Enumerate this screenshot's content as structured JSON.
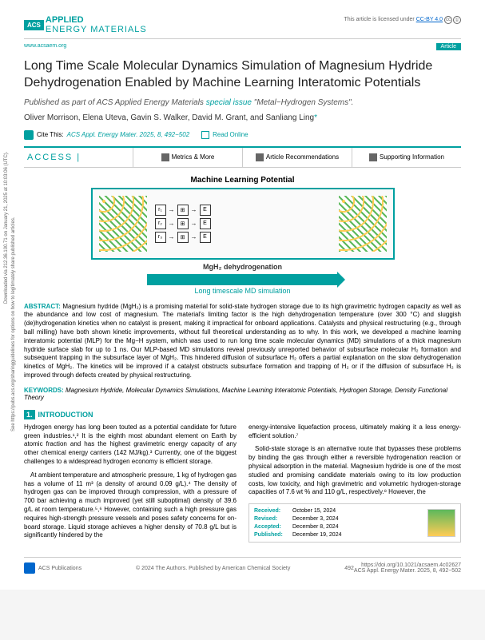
{
  "vtext1": "Downloaded via 212.36.100.71 on January 21, 2025 at 10:03:06 (UTC).",
  "vtext2": "See https://pubs.acs.org/sharingguidelines for options on how to legitimately share published articles.",
  "journal": {
    "acs": "ACS",
    "line1": "APPLIED",
    "line2": "ENERGY MATERIALS"
  },
  "license": {
    "text": "This article is licensed under ",
    "link": "CC-BY 4.0"
  },
  "meta": {
    "url": "www.acsaem.org",
    "badge": "Article"
  },
  "title": "Long Time Scale Molecular Dynamics Simulation of Magnesium Hydride Dehydrogenation Enabled by Machine Learning Interatomic Potentials",
  "subtitle_pre": "Published as part of ACS Applied Energy Materials ",
  "subtitle_special": "special issue",
  "subtitle_post": " \"Metal−Hydrogen Systems\".",
  "authors": "Oliver Morrison, Elena Uteva, Gavin S. Walker, David M. Grant, and Sanliang Ling",
  "corr": "*",
  "cite": {
    "label": "Cite This:",
    "text": "ACS Appl. Energy Mater. 2025, 8, 492−502",
    "read": "Read Online"
  },
  "tabs": {
    "access": "ACCESS |",
    "metrics": "Metrics & More",
    "recs": "Article Recommendations",
    "si": "Supporting Information"
  },
  "figure": {
    "top": "Machine Learning Potential",
    "mid": "MgH₂ dehydrogenation",
    "bot": "Long timescale MD simulation",
    "nodes": [
      "r₁",
      "E",
      "r₂",
      "E",
      "r₃",
      "E"
    ]
  },
  "abstract_label": "ABSTRACT:",
  "abstract": "Magnesium hydride (MgH₂) is a promising material for solid-state hydrogen storage due to its high gravimetric hydrogen capacity as well as the abundance and low cost of magnesium. The material's limiting factor is the high dehydrogenation temperature (over 300 °C) and sluggish (de)hydrogenation kinetics when no catalyst is present, making it impractical for onboard applications. Catalysts and physical restructuring (e.g., through ball milling) have both shown kinetic improvements, without full theoretical understanding as to why. In this work, we developed a machine learning interatomic potential (MLP) for the Mg−H system, which was used to run long time scale molecular dynamics (MD) simulations of a thick magnesium hydride surface slab for up to 1 ns. Our MLP-based MD simulations reveal previously unreported behavior of subsurface molecular H₂ formation and subsequent trapping in the subsurface layer of MgH₂. This hindered diffusion of subsurface H₂ offers a partial explanation on the slow dehydrogenation kinetics of MgH₂. The kinetics will be improved if a catalyst obstructs subsurface formation and trapping of H₂ or if the diffusion of subsurface H₂ is improved through defects created by physical restructuring.",
  "kw_label": "KEYWORDS:",
  "keywords": "Magnesium Hydride, Molecular Dynamics Simulations, Machine Learning Interatomic Potentials, Hydrogen Storage, Density Functional Theory",
  "section1": {
    "num": "1.",
    "title": "INTRODUCTION"
  },
  "col1": {
    "p1": "Hydrogen energy has long been touted as a potential candidate for future green industries.¹,² It is the eighth most abundant element on Earth by atomic fraction and has the highest gravimetric energy capacity of any other chemical energy carriers (142 MJ/kg).³ Currently, one of the biggest challenges to a widespread hydrogen economy is efficient storage.",
    "p2": "At ambient temperature and atmospheric pressure, 1 kg of hydrogen gas has a volume of 11 m³ (a density of around 0.09 g/L).⁴ The density of hydrogen gas can be improved through compression, with a pressure of 700 bar achieving a much improved (yet still suboptimal) density of 39.6 g/L at room temperature.⁵,⁶ However, containing such a high pressure gas requires high-strength pressure vessels and poses safety concerns for on-board storage. Liquid storage achieves a higher density of 70.8 g/L but is significantly hindered by the"
  },
  "col2": {
    "p1": "energy-intensive liquefaction process, ultimately making it a less energy-efficient solution.⁷",
    "p2": "Solid-state storage is an alternative route that bypasses these problems by binding the gas through either a reversible hydrogenation reaction or physical adsorption in the material. Magnesium hydride is one of the most studied and promising candidate materials owing to its low production costs, low toxicity, and high gravimetric and volumetric hydrogen-storage capacities of 7.6 wt % and 110 g/L, respectively.⁸ However, the"
  },
  "dates": {
    "received_l": "Received:",
    "received": "October 15, 2024",
    "revised_l": "Revised:",
    "revised": "December 3, 2024",
    "accepted_l": "Accepted:",
    "accepted": "December 8, 2024",
    "published_l": "Published:",
    "published": "December 19, 2024"
  },
  "footer": {
    "pub": "ACS Publications",
    "copy": "© 2024 The Authors. Published by American Chemical Society",
    "page": "492",
    "doi": "https://doi.org/10.1021/acsaem.4c02627",
    "ref": "ACS Appl. Energy Mater. 2025, 8, 492−502"
  }
}
